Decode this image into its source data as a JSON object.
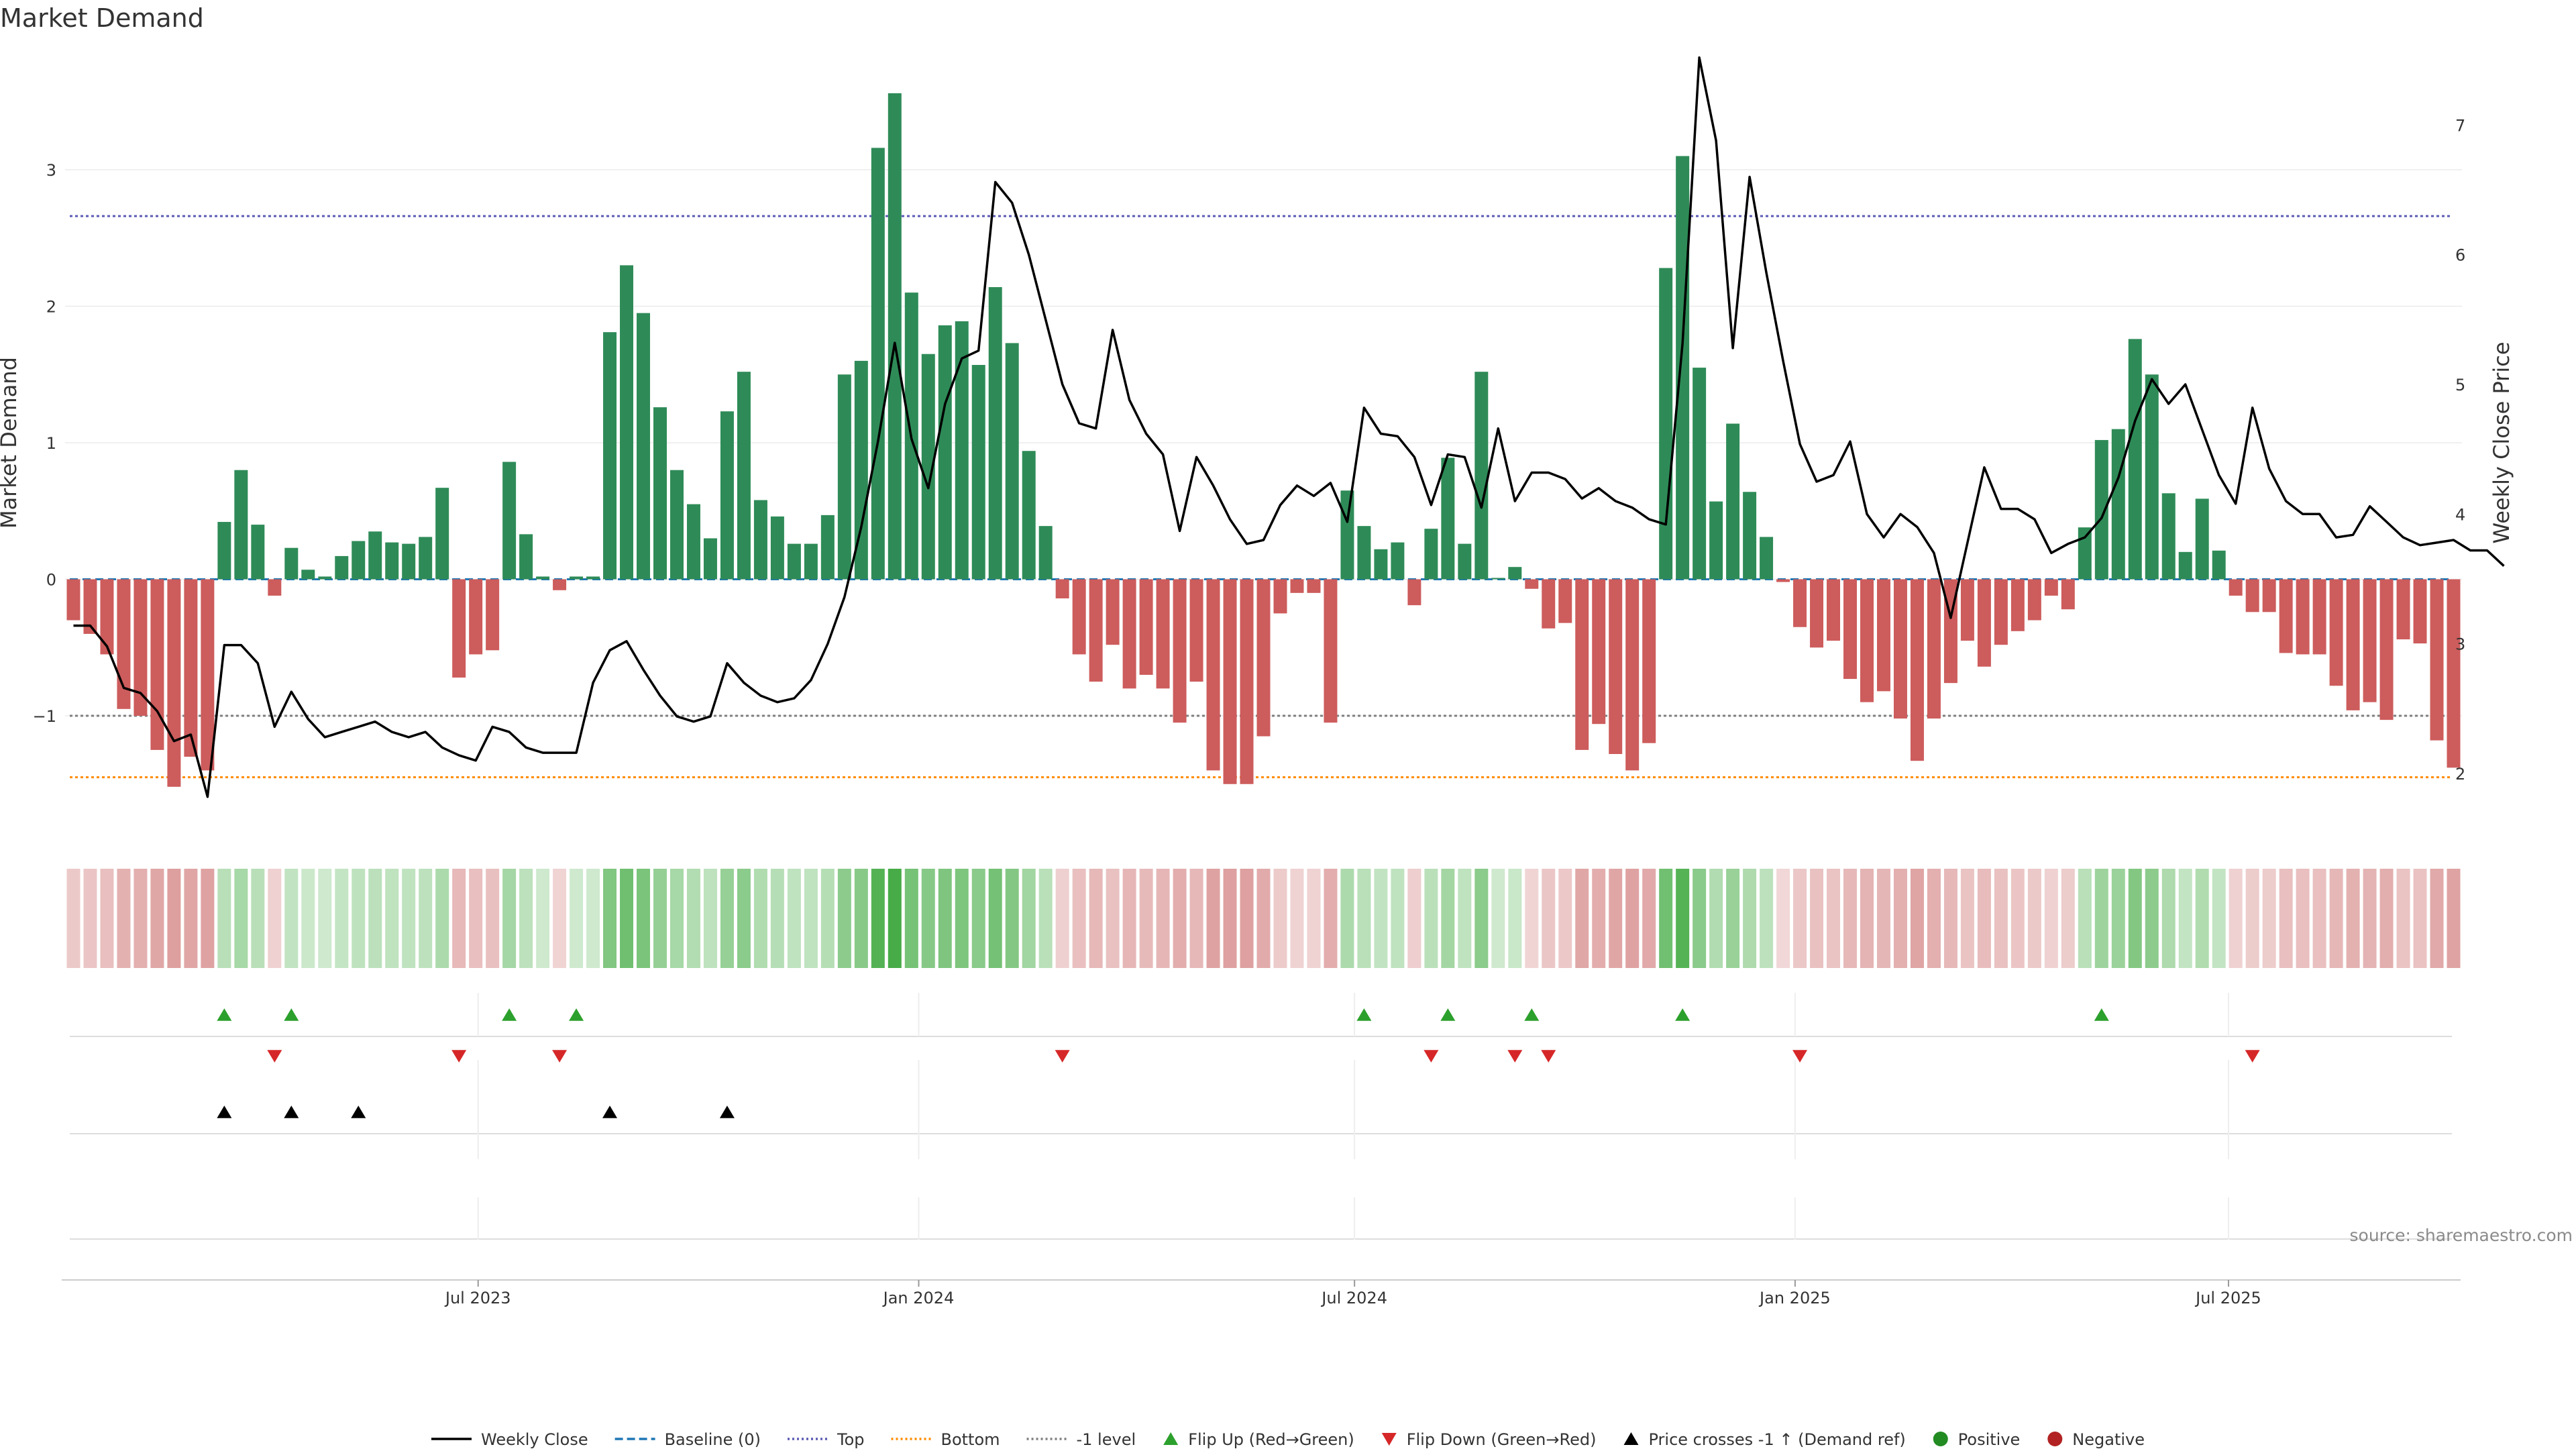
{
  "chart_data": {
    "type": "bar",
    "title": "Market Demand",
    "ylabel": "Market Demand",
    "y2label": "Weekly Close Price",
    "ylim": [
      -1.85,
      3.85
    ],
    "y2lim": [
      1.55,
      7.55
    ],
    "yticks": [
      -1,
      0,
      1,
      2,
      3
    ],
    "y2ticks": [
      2,
      3,
      4,
      5,
      6,
      7
    ],
    "x_start": "2023-01-13",
    "x_step_days": 7,
    "xticks": [
      {
        "date": "2023-07-01",
        "label": "Jul 2023"
      },
      {
        "date": "2024-01-01",
        "label": "Jan 2024"
      },
      {
        "date": "2024-07-01",
        "label": "Jul 2024"
      },
      {
        "date": "2025-01-01",
        "label": "Jan 2025"
      },
      {
        "date": "2025-07-01",
        "label": "Jul 2025"
      }
    ],
    "reference_lines": [
      {
        "name": "Baseline (0)",
        "value": 0,
        "color": "#1f77b4",
        "style": "dashed"
      },
      {
        "name": "Top",
        "value": 2.66,
        "color": "#5b5bb4",
        "style": "dotted"
      },
      {
        "name": "Bottom",
        "value": -1.45,
        "color": "#ff8c00",
        "style": "dotted"
      },
      {
        "name": "-1 level",
        "value": -1,
        "color": "#7f7f7f",
        "style": "dotted"
      }
    ],
    "series": [
      {
        "name": "Market Demand",
        "values": [
          -0.3,
          -0.4,
          -0.55,
          -0.95,
          -1.0,
          -1.25,
          -1.52,
          -1.3,
          -1.4,
          0.42,
          0.8,
          0.4,
          -0.12,
          0.23,
          0.07,
          0.02,
          0.17,
          0.28,
          0.35,
          0.27,
          0.26,
          0.31,
          0.67,
          -0.72,
          -0.55,
          -0.52,
          0.86,
          0.33,
          0.02,
          -0.08,
          0.02,
          0.02,
          1.81,
          2.3,
          1.95,
          1.26,
          0.8,
          0.55,
          0.3,
          1.23,
          1.52,
          0.58,
          0.46,
          0.26,
          0.26,
          0.47,
          1.5,
          1.6,
          3.16,
          3.56,
          2.1,
          1.65,
          1.86,
          1.89,
          1.57,
          2.14,
          1.73,
          0.94,
          0.39,
          -0.14,
          -0.55,
          -0.75,
          -0.48,
          -0.8,
          -0.7,
          -0.8,
          -1.05,
          -0.75,
          -1.4,
          -1.5,
          -1.5,
          -1.15,
          -0.25,
          -0.1,
          -0.1,
          -1.05,
          0.65,
          0.39,
          0.22,
          0.27,
          -0.19,
          0.37,
          0.89,
          0.26,
          1.52,
          0.01,
          0.09,
          -0.07,
          -0.36,
          -0.32,
          -1.25,
          -1.06,
          -1.28,
          -1.4,
          -1.2,
          2.28,
          3.1,
          1.55,
          0.57,
          1.14,
          0.64,
          0.31,
          -0.02,
          -0.35,
          -0.5,
          -0.45,
          -0.73,
          -0.9,
          -0.82,
          -1.02,
          -1.33,
          -1.02,
          -0.76,
          -0.45,
          -0.64,
          -0.48,
          -0.38,
          -0.3,
          -0.12,
          -0.22,
          0.38,
          1.02,
          1.1,
          1.76,
          1.5,
          0.63,
          0.2,
          0.59,
          0.21,
          -0.12,
          -0.24,
          -0.24,
          -0.54,
          -0.55,
          -0.55,
          -0.78,
          -0.96,
          -0.9,
          -1.03,
          -0.44,
          -0.47,
          -1.18,
          -1.38
        ]
      },
      {
        "name": "Weekly Close",
        "values": [
          3.14,
          3.14,
          2.98,
          2.66,
          2.62,
          2.48,
          2.25,
          2.3,
          1.82,
          2.99,
          2.99,
          2.85,
          2.36,
          2.63,
          2.42,
          2.28,
          2.32,
          2.36,
          2.4,
          2.32,
          2.28,
          2.32,
          2.2,
          2.14,
          2.1,
          2.36,
          2.32,
          2.2,
          2.16,
          2.16,
          2.16,
          2.7,
          2.95,
          3.02,
          2.8,
          2.6,
          2.44,
          2.4,
          2.44,
          2.85,
          2.7,
          2.6,
          2.55,
          2.58,
          2.72,
          3.0,
          3.36,
          3.9,
          4.56,
          5.32,
          4.58,
          4.2,
          4.85,
          5.2,
          5.26,
          6.56,
          6.4,
          6.0,
          5.5,
          5.0,
          4.7,
          4.66,
          5.42,
          4.88,
          4.62,
          4.46,
          3.87,
          4.44,
          4.22,
          3.96,
          3.77,
          3.8,
          4.07,
          4.22,
          4.14,
          4.24,
          3.94,
          4.82,
          4.62,
          4.6,
          4.44,
          4.07,
          4.46,
          4.44,
          4.05,
          4.66,
          4.1,
          4.32,
          4.32,
          4.27,
          4.12,
          4.2,
          4.1,
          4.05,
          3.96,
          3.92,
          5.32,
          7.52,
          6.88,
          5.28,
          6.6,
          5.86,
          5.18,
          4.54,
          4.25,
          4.3,
          4.56,
          4.0,
          3.82,
          4.0,
          3.9,
          3.7,
          3.2,
          3.78,
          4.36,
          4.04,
          4.04,
          3.96,
          3.7,
          3.77,
          3.82,
          3.97,
          4.28,
          4.72,
          5.04,
          4.85,
          5.0,
          4.65,
          4.3,
          4.08,
          4.82,
          4.35,
          4.1,
          4.0,
          4.0,
          3.82,
          3.84,
          4.06,
          3.94,
          3.82,
          3.76,
          3.78,
          3.8,
          3.72,
          3.72,
          3.6
        ]
      }
    ],
    "strip": {
      "positive_color": "#2e8b57",
      "negative_color": "#cd5c5c"
    },
    "events": [
      {
        "name": "Flip Up (Red→Green)",
        "color": "#2ca02c",
        "marker": "triangle-up",
        "indices": [
          9,
          13,
          26,
          30,
          77,
          82,
          87,
          96,
          121
        ]
      },
      {
        "name": "Flip Down (Green→Red)",
        "color": "#d62728",
        "marker": "triangle-down",
        "indices": [
          12,
          23,
          29,
          59,
          81,
          86,
          88,
          103,
          130
        ]
      },
      {
        "name": "Price crosses -1 ↑ (Demand ref)",
        "color": "#000000",
        "marker": "triangle-up",
        "indices": [
          9,
          13,
          17,
          32,
          39
        ]
      }
    ],
    "legend": {
      "position": "bottom",
      "entries": [
        {
          "label": "Weekly Close",
          "kind": "line",
          "color": "#000000",
          "dash": ""
        },
        {
          "label": "Baseline (0)",
          "kind": "line",
          "color": "#1f77b4",
          "dash": "12,6"
        },
        {
          "label": "Top",
          "kind": "line",
          "color": "#5b5bb4",
          "dash": "3,4"
        },
        {
          "label": "Bottom",
          "kind": "line",
          "color": "#ff8c00",
          "dash": "3,4"
        },
        {
          "label": "-1 level",
          "kind": "line",
          "color": "#7f7f7f",
          "dash": "3,4"
        },
        {
          "label": "Flip Up (Red→Green)",
          "kind": "tri-up",
          "color": "#2ca02c"
        },
        {
          "label": "Flip Down (Green→Red)",
          "kind": "tri-down",
          "color": "#d62728"
        },
        {
          "label": "Price crosses -1 ↑ (Demand ref)",
          "kind": "tri-up",
          "color": "#000000"
        },
        {
          "label": "Positive",
          "kind": "dot",
          "color": "#228b22"
        },
        {
          "label": "Negative",
          "kind": "dot",
          "color": "#b22222"
        }
      ]
    },
    "source": "source: sharemaestro.com"
  }
}
